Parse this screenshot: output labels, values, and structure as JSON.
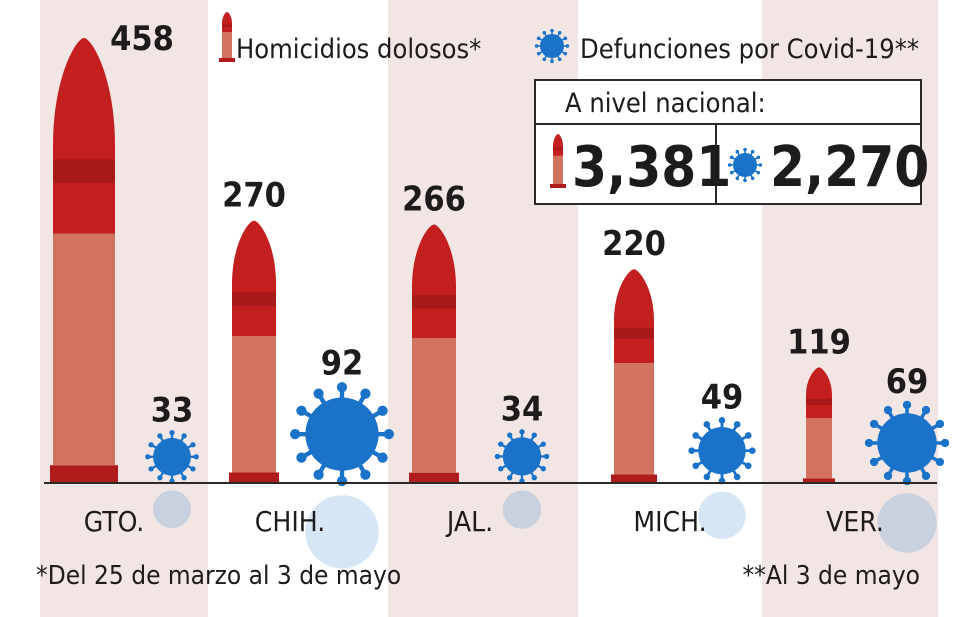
{
  "chart_data": {
    "type": "bar",
    "categories": [
      "GTO.",
      "CHIH.",
      "JAL.",
      "MICH.",
      "VER."
    ],
    "series": [
      {
        "name": "Homicidios dolosos*",
        "values": [
          458,
          270,
          266,
          220,
          119
        ]
      },
      {
        "name": "Defunciones por Covid-19**",
        "values": [
          33,
          92,
          34,
          49,
          69
        ]
      }
    ],
    "national": {
      "title": "A nivel nacional:",
      "homicides": "3,381",
      "covid": "2,270"
    },
    "footnotes": {
      "left": "*Del 25 de marzo al 3 de mayo",
      "right": "**Al 3 de mayo"
    }
  },
  "colors": {
    "bullet_tip": "#c31f1f",
    "bullet_tip_dark": "#9a1515",
    "bullet_body": "#d1735f",
    "bullet_base": "#b01b1b",
    "virus": "#1a73c9",
    "stripe": "#f1e6e3",
    "text": "#1d1b1b"
  }
}
